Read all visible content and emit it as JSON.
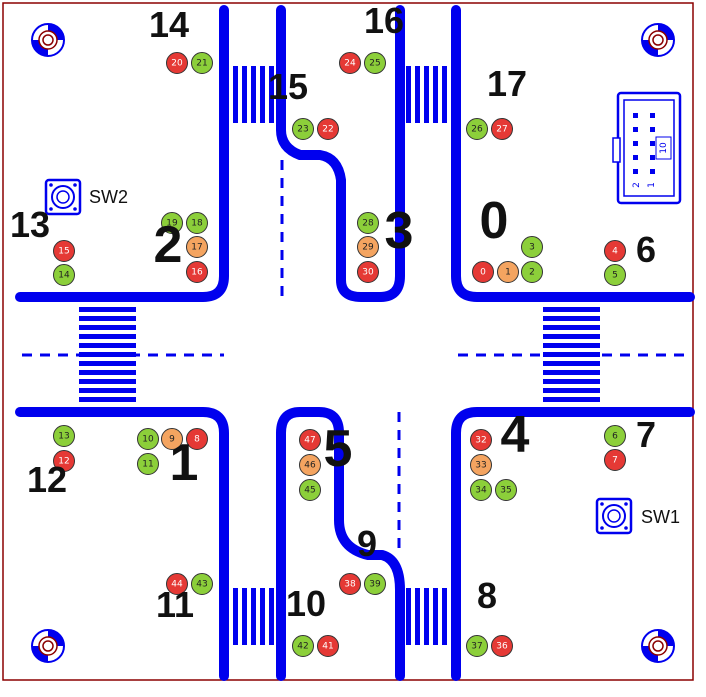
{
  "colors": {
    "red": "#e53935",
    "orange": "#f4a460",
    "green": "#8ccf3a",
    "road": "#0000ee",
    "border": "#8b0000"
  },
  "switches": {
    "sw1": "SW1",
    "sw2": "SW2"
  },
  "connector_pins": {
    "a": "10",
    "b": "2",
    "c": "1"
  },
  "groups": [
    {
      "id": "g0",
      "label": "0"
    },
    {
      "id": "g1",
      "label": "1"
    },
    {
      "id": "g2",
      "label": "2"
    },
    {
      "id": "g3",
      "label": "3"
    },
    {
      "id": "g4",
      "label": "4"
    },
    {
      "id": "g5",
      "label": "5"
    },
    {
      "id": "g6",
      "label": "6"
    },
    {
      "id": "g7",
      "label": "7"
    },
    {
      "id": "g8",
      "label": "8"
    },
    {
      "id": "g9",
      "label": "9"
    },
    {
      "id": "g10",
      "label": "10"
    },
    {
      "id": "g11",
      "label": "11"
    },
    {
      "id": "g12",
      "label": "12"
    },
    {
      "id": "g13",
      "label": "13"
    },
    {
      "id": "g14",
      "label": "14"
    },
    {
      "id": "g15",
      "label": "15"
    },
    {
      "id": "g16",
      "label": "16"
    },
    {
      "id": "g17",
      "label": "17"
    }
  ],
  "leds": [
    {
      "n": "0",
      "c": "red"
    },
    {
      "n": "1",
      "c": "orange"
    },
    {
      "n": "2",
      "c": "green"
    },
    {
      "n": "3",
      "c": "green"
    },
    {
      "n": "4",
      "c": "red"
    },
    {
      "n": "5",
      "c": "green"
    },
    {
      "n": "6",
      "c": "green"
    },
    {
      "n": "7",
      "c": "red"
    },
    {
      "n": "8",
      "c": "red"
    },
    {
      "n": "9",
      "c": "orange"
    },
    {
      "n": "10",
      "c": "green"
    },
    {
      "n": "11",
      "c": "green"
    },
    {
      "n": "12",
      "c": "red"
    },
    {
      "n": "13",
      "c": "green"
    },
    {
      "n": "14",
      "c": "green"
    },
    {
      "n": "15",
      "c": "red"
    },
    {
      "n": "16",
      "c": "red"
    },
    {
      "n": "17",
      "c": "orange"
    },
    {
      "n": "18",
      "c": "green"
    },
    {
      "n": "19",
      "c": "green"
    },
    {
      "n": "20",
      "c": "red"
    },
    {
      "n": "21",
      "c": "green"
    },
    {
      "n": "22",
      "c": "red"
    },
    {
      "n": "23",
      "c": "green"
    },
    {
      "n": "24",
      "c": "red"
    },
    {
      "n": "25",
      "c": "green"
    },
    {
      "n": "26",
      "c": "green"
    },
    {
      "n": "27",
      "c": "red"
    },
    {
      "n": "28",
      "c": "green"
    },
    {
      "n": "29",
      "c": "orange"
    },
    {
      "n": "30",
      "c": "red"
    },
    {
      "n": "32",
      "c": "red"
    },
    {
      "n": "33",
      "c": "orange"
    },
    {
      "n": "34",
      "c": "green"
    },
    {
      "n": "35",
      "c": "green"
    },
    {
      "n": "36",
      "c": "red"
    },
    {
      "n": "37",
      "c": "green"
    },
    {
      "n": "38",
      "c": "red"
    },
    {
      "n": "39",
      "c": "green"
    },
    {
      "n": "41",
      "c": "red"
    },
    {
      "n": "42",
      "c": "green"
    },
    {
      "n": "43",
      "c": "green"
    },
    {
      "n": "44",
      "c": "red"
    },
    {
      "n": "45",
      "c": "green"
    },
    {
      "n": "46",
      "c": "orange"
    },
    {
      "n": "47",
      "c": "red"
    }
  ]
}
